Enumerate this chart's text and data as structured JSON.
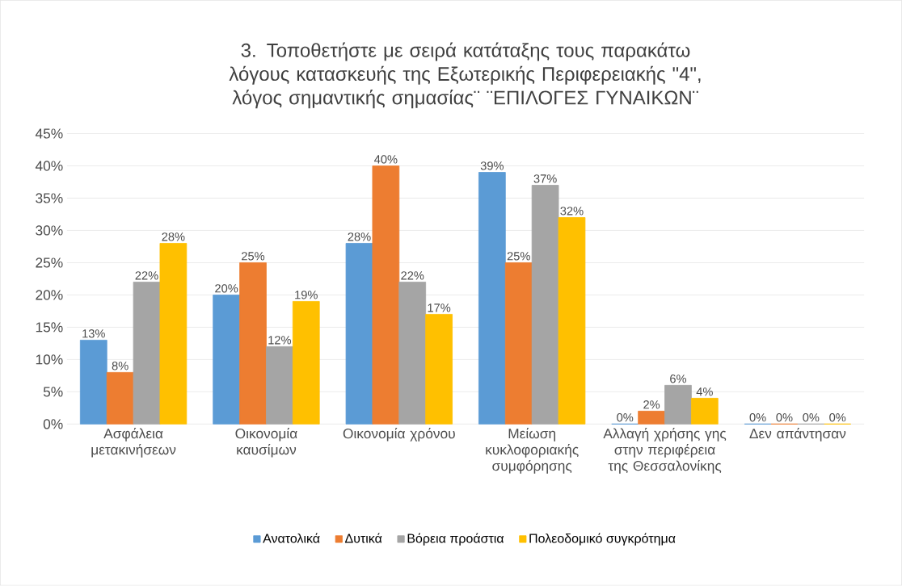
{
  "chart_data": {
    "type": "bar",
    "title": "3. Τοποθετήστε με σειρά κατάταξης τους παρακάτω λόγους κατασκευής της Εξωτερικής Περιφερειακής \"4\", λόγος σημαντικής σημασίας¨ ¨ΕΠΙΛΟΓΕΣ ΓΥΝΑΙΚΩΝ¨",
    "categories": [
      "Ασφάλεια μετακινήσεων",
      "Οικονομία καυσίμων",
      "Οικονομία χρόνου",
      "Μείωση κυκλοφοριακής συμφόρησης",
      "Αλλαγή χρήσης γης στην περιφέρεια της Θεσσαλονίκης",
      "Δεν απάντησαν"
    ],
    "series": [
      {
        "name": "Ανατολικά",
        "color": "#5b9bd5",
        "values": [
          13,
          20,
          28,
          39,
          0,
          0
        ],
        "value_labels": [
          "13%",
          "20%",
          "28%",
          "39%",
          "0%",
          "0%"
        ]
      },
      {
        "name": "Δυτικά",
        "color": "#ed7d31",
        "values": [
          8,
          25,
          40,
          25,
          2,
          0
        ],
        "value_labels": [
          "8%",
          "25%",
          "40%",
          "25%",
          "2%",
          "0%"
        ]
      },
      {
        "name": "Βόρεια προάστια",
        "color": "#a5a5a5",
        "values": [
          22,
          12,
          22,
          37,
          6,
          0
        ],
        "value_labels": [
          "22%",
          "12%",
          "22%",
          "37%",
          "6%",
          "0%"
        ]
      },
      {
        "name": "Πολεοδομικό συγκρότημα",
        "color": "#ffc000",
        "values": [
          28,
          19,
          17,
          32,
          4,
          0
        ],
        "value_labels": [
          "28%",
          "19%",
          "17%",
          "32%",
          "4%",
          "0%"
        ]
      }
    ],
    "ylim": [
      0,
      45
    ],
    "yticks": [
      {
        "value": 0,
        "label": "0%"
      },
      {
        "value": 5,
        "label": "5%"
      },
      {
        "value": 10,
        "label": "10%"
      },
      {
        "value": 15,
        "label": "15%"
      },
      {
        "value": 20,
        "label": "20%"
      },
      {
        "value": 25,
        "label": "25%"
      },
      {
        "value": 30,
        "label": "30%"
      },
      {
        "value": 35,
        "label": "35%"
      },
      {
        "value": 40,
        "label": "40%"
      },
      {
        "value": 45,
        "label": "45%"
      }
    ],
    "grid": "y",
    "legend": "bottom"
  }
}
